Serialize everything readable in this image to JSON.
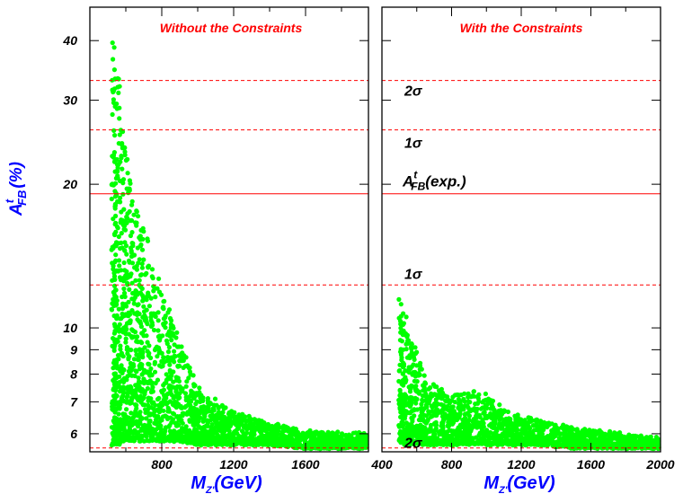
{
  "chart_data": {
    "type": "scatter",
    "ylabel_main": "A",
    "ylabel_sup": "t",
    "ylabel_sub": "FB",
    "ylabel_unit": "(%)",
    "xlabel_main": "M",
    "xlabel_sub": "Z'",
    "xlabel_unit": "(GeV)",
    "y_scale": "log",
    "ylim": [
      5.5,
      47
    ],
    "y_ticks": [
      6,
      7,
      8,
      9,
      10,
      20,
      30,
      40
    ],
    "point_color": "#00ff00",
    "line_color": "#ff0000",
    "reference_lines": {
      "central": 19.1,
      "one_sigma_upper": 26.0,
      "one_sigma_lower": 12.3,
      "two_sigma_upper": 33.0,
      "two_sigma_lower": 5.6
    },
    "panels": [
      {
        "title": "Without the Constraints",
        "xlim": [
          400,
          1950
        ],
        "x_ticks": [
          800,
          1200,
          1600
        ],
        "annotations": [],
        "density": [
          {
            "x": 530,
            "y_min": 5.7,
            "y_max": 41
          },
          {
            "x": 550,
            "y_min": 5.7,
            "y_max": 36
          },
          {
            "x": 600,
            "y_min": 5.8,
            "y_max": 23
          },
          {
            "x": 650,
            "y_min": 5.8,
            "y_max": 19
          },
          {
            "x": 700,
            "y_min": 5.8,
            "y_max": 16
          },
          {
            "x": 800,
            "y_min": 5.8,
            "y_max": 12
          },
          {
            "x": 900,
            "y_min": 5.8,
            "y_max": 9.5
          },
          {
            "x": 1000,
            "y_min": 5.7,
            "y_max": 7.5
          },
          {
            "x": 1200,
            "y_min": 5.7,
            "y_max": 6.7
          },
          {
            "x": 1400,
            "y_min": 5.7,
            "y_max": 6.3
          },
          {
            "x": 1600,
            "y_min": 5.6,
            "y_max": 6.1
          },
          {
            "x": 1950,
            "y_min": 5.6,
            "y_max": 6.0
          }
        ]
      },
      {
        "title": "With the Constraints",
        "xlim": [
          400,
          2000
        ],
        "x_ticks": [
          400,
          800,
          1200,
          1600,
          2000
        ],
        "annotations": [
          {
            "text": "2σ",
            "y": 31.5
          },
          {
            "text": "1σ",
            "y": 24.5
          },
          {
            "text": "1σ",
            "y": 13.0
          },
          {
            "text": "2σ",
            "y": 5.75
          }
        ],
        "central_label": {
          "main": "A",
          "sup": "t",
          "sub": "FB",
          "rest": "(exp.)",
          "y": 20.3
        },
        "density": [
          {
            "x": 500,
            "y_min": 5.7,
            "y_max": 11.6
          },
          {
            "x": 560,
            "y_min": 5.7,
            "y_max": 10
          },
          {
            "x": 650,
            "y_min": 5.7,
            "y_max": 8
          },
          {
            "x": 800,
            "y_min": 5.7,
            "y_max": 7.2
          },
          {
            "x": 950,
            "y_min": 5.7,
            "y_max": 7.5
          },
          {
            "x": 1100,
            "y_min": 5.7,
            "y_max": 6.8
          },
          {
            "x": 1300,
            "y_min": 5.7,
            "y_max": 6.4
          },
          {
            "x": 1500,
            "y_min": 5.6,
            "y_max": 6.2
          },
          {
            "x": 1800,
            "y_min": 5.6,
            "y_max": 6.0
          },
          {
            "x": 2000,
            "y_min": 5.6,
            "y_max": 5.9
          }
        ]
      }
    ]
  }
}
